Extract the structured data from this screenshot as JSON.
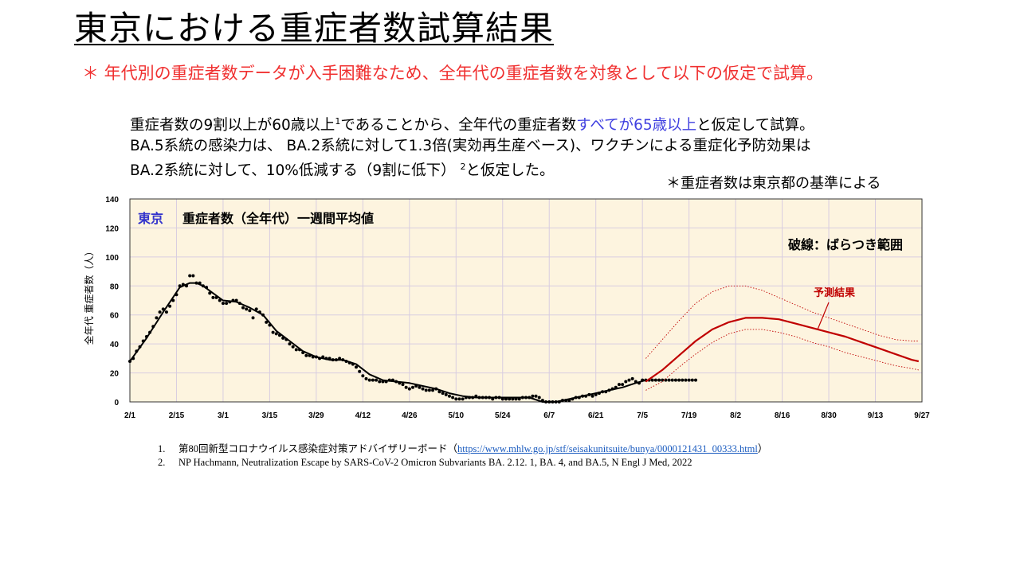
{
  "slide": {
    "title": "東京における重症者数試算結果",
    "note_red": "＊ 年代別の重症者数データが入手困難なため、全年代の重症者数を対象として以下の仮定で試算。",
    "desc": {
      "line1_a": "重症者数の9割以上が60歳以上",
      "line1_sup": "1",
      "line1_b": "であることから、全年代の重症者数",
      "line1_blue": "すべてが65歳以上",
      "line1_c": "と仮定して試算。",
      "line2": "BA.5系統の感染力は、 BA.2系統に対して1.3倍(実効再生産ベース)、ワクチンによる重症化予防効果は",
      "line3_a": "BA.2系統に対して、10%低減する（9割に低下）",
      "line3_sup": "2",
      "line3_b": "と仮定した。"
    },
    "note_right": "＊重症者数は東京都の基準による"
  },
  "references": [
    {
      "num": "1.",
      "text": "第80回新型コロナウイルス感染症対策アドバイザリーボード（",
      "link": "https://www.mhlw.go.jp/stf/seisakunitsuite/bunya/0000121431_00333.html",
      "tail": "）"
    },
    {
      "num": "2.",
      "text": "NP Hachmann, Neutralization Escape by SARS-CoV-2 Omicron Subvariants BA. 2.12. 1, BA. 4, and BA.5, N Engl J Med, 2022"
    }
  ],
  "colors": {
    "plot_bg": "#fdf4df",
    "grid": "#d8cde0",
    "observed": "#000000",
    "forecast": "#c00000",
    "title_blue": "#3333cc"
  },
  "chart_data": {
    "type": "line",
    "title_prefix": "東京",
    "title": "重症者数（全年代）一週間平均値",
    "legend_band": "破線：ばらつき範囲",
    "forecast_label": "予測結果",
    "ylabel": "全年代 重症者数（人）",
    "xlabel": "",
    "ylim": [
      0,
      140
    ],
    "yticks": [
      0,
      20,
      40,
      60,
      80,
      100,
      120,
      140
    ],
    "xlim": [
      0,
      238
    ],
    "xtick_days": [
      0,
      14,
      28,
      42,
      56,
      70,
      84,
      98,
      112,
      126,
      140,
      154,
      168,
      182,
      196,
      210,
      224,
      238
    ],
    "xtick_labels": [
      "2/1",
      "2/15",
      "3/1",
      "3/15",
      "3/29",
      "4/12",
      "4/26",
      "5/10",
      "5/24",
      "6/7",
      "6/21",
      "7/5",
      "7/19",
      "8/2",
      "8/16",
      "8/30",
      "9/13",
      "9/27"
    ],
    "grid": true,
    "series": [
      {
        "kind": "points",
        "x": [
          0,
          1,
          2,
          3,
          4,
          5,
          6,
          7,
          8,
          9,
          10,
          11,
          12,
          13,
          14,
          15,
          16,
          17,
          18,
          19,
          20,
          21,
          22,
          23,
          24,
          25,
          26,
          27,
          28,
          29,
          30,
          31,
          32,
          33,
          34,
          35,
          36,
          37,
          38,
          39,
          40,
          41,
          42,
          43,
          44,
          45,
          46,
          47,
          48,
          49,
          50,
          51,
          52,
          53,
          54,
          55,
          56,
          57,
          58,
          59,
          60,
          61,
          62,
          63,
          64,
          65,
          66,
          67,
          68,
          69,
          70,
          71,
          72,
          73,
          74,
          75,
          76,
          77,
          78,
          79,
          80,
          81,
          82,
          83,
          84,
          85,
          86,
          87,
          88,
          89,
          90,
          91,
          92,
          93,
          94,
          95,
          96,
          97,
          98,
          99,
          100,
          101,
          102,
          103,
          104,
          105,
          106,
          107,
          108,
          109,
          110,
          111,
          112,
          113,
          114,
          115,
          116,
          117,
          118,
          119,
          120,
          121,
          122,
          123,
          124,
          125,
          126,
          127,
          128,
          129,
          130,
          131,
          132,
          133,
          134,
          135,
          136,
          137,
          138,
          139,
          140,
          141,
          142,
          143,
          144,
          145,
          146,
          147,
          148,
          149,
          150,
          151,
          152,
          153,
          154,
          155,
          156,
          157,
          158,
          159,
          160,
          161,
          162,
          163,
          164,
          165,
          166,
          167,
          168,
          169,
          170
        ],
        "y": [
          28,
          30,
          35,
          38,
          42,
          45,
          48,
          52,
          58,
          62,
          64,
          62,
          66,
          70,
          74,
          80,
          81,
          80,
          87,
          87,
          82,
          82,
          80,
          79,
          75,
          72,
          72,
          70,
          68,
          68,
          69,
          70,
          70,
          68,
          65,
          64,
          63,
          58,
          64,
          62,
          60,
          55,
          53,
          48,
          47,
          46,
          44,
          43,
          40,
          38,
          36,
          36,
          34,
          32,
          32,
          31,
          31,
          30,
          31,
          30,
          30,
          29,
          29,
          30,
          29,
          28,
          27,
          26,
          24,
          21,
          18,
          16,
          15,
          15,
          15,
          14,
          14,
          14,
          15,
          15,
          14,
          13,
          12,
          10,
          9,
          10,
          11,
          10,
          9,
          8,
          8,
          8,
          9,
          7,
          6,
          5,
          4,
          3,
          2,
          2,
          2,
          3,
          3,
          3,
          4,
          3,
          3,
          3,
          3,
          2,
          3,
          3,
          2,
          2,
          2,
          2,
          2,
          2,
          3,
          3,
          3,
          4,
          4,
          3,
          1,
          0,
          0,
          0,
          0,
          0,
          1,
          1,
          1,
          2,
          3,
          3,
          4,
          4,
          5,
          4,
          5,
          6,
          7,
          7,
          8,
          9,
          10,
          12,
          12,
          14,
          15,
          16,
          14,
          13,
          15,
          15,
          15,
          15,
          15,
          15,
          15,
          15,
          15,
          15,
          15,
          15,
          15,
          15,
          15,
          15,
          15
        ]
      },
      {
        "kind": "smooth",
        "x": [
          0,
          5,
          10,
          15,
          18,
          20,
          22,
          25,
          28,
          32,
          36,
          40,
          44,
          48,
          52,
          56,
          60,
          64,
          68,
          72,
          76,
          80,
          84,
          88,
          92,
          96,
          100,
          104,
          108,
          112,
          116,
          120,
          124,
          128,
          132,
          136,
          140,
          144,
          148,
          152,
          155
        ],
        "y": [
          28,
          44,
          62,
          79,
          82,
          82,
          80,
          75,
          70,
          69,
          65,
          60,
          49,
          42,
          35,
          31,
          29,
          29,
          26,
          19,
          15,
          14,
          13,
          11,
          9,
          6,
          4,
          3,
          3,
          3,
          3,
          3,
          0,
          0,
          2,
          4,
          6,
          8,
          10,
          13,
          15
        ]
      },
      {
        "kind": "forecast",
        "x": [
          155,
          160,
          165,
          170,
          175,
          180,
          185,
          190,
          195,
          200,
          205,
          210,
          215,
          220,
          225,
          230,
          235,
          237
        ],
        "y": [
          14,
          22,
          32,
          42,
          50,
          55,
          58,
          58,
          57,
          54,
          51,
          48,
          45,
          41,
          37,
          33,
          29,
          28
        ]
      },
      {
        "kind": "band-upper",
        "x": [
          155,
          160,
          165,
          170,
          175,
          180,
          185,
          190,
          195,
          200,
          205,
          210,
          215,
          220,
          225,
          230,
          235,
          237
        ],
        "y": [
          30,
          43,
          56,
          68,
          76,
          80,
          80,
          77,
          72,
          67,
          62,
          58,
          54,
          50,
          46,
          43,
          42,
          42
        ]
      },
      {
        "kind": "band-lower",
        "x": [
          155,
          160,
          165,
          170,
          175,
          180,
          185,
          190,
          195,
          200,
          205,
          210,
          215,
          220,
          225,
          230,
          235,
          237
        ],
        "y": [
          8,
          14,
          24,
          33,
          41,
          47,
          50,
          50,
          48,
          45,
          41,
          38,
          34,
          31,
          28,
          25,
          23,
          22
        ]
      }
    ]
  }
}
